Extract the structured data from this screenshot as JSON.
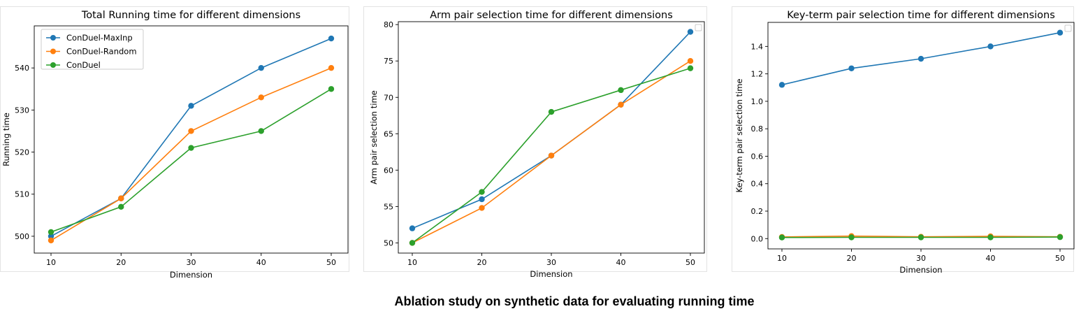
{
  "caption": "Ablation study on synthetic data for evaluating running time",
  "colors": {
    "blue": "#1f77b4",
    "orange": "#ff7f0e",
    "green": "#2ca02c"
  },
  "chart_data": [
    {
      "type": "line",
      "title": "Total Running time for different dimensions",
      "xlabel": "Dimension",
      "ylabel": "Running time",
      "x": [
        10,
        20,
        30,
        40,
        50
      ],
      "xticks": [
        "10",
        "20",
        "30",
        "40",
        "50"
      ],
      "yticks": [
        "500",
        "510",
        "520",
        "530",
        "540"
      ],
      "ylim": [
        496,
        550
      ],
      "legend": "top-left",
      "series": [
        {
          "name": "ConDuel-MaxInp",
          "color": "#1f77b4",
          "values": [
            500,
            509,
            531,
            540,
            547
          ]
        },
        {
          "name": "ConDuel-Random",
          "color": "#ff7f0e",
          "values": [
            499,
            509,
            525,
            533,
            540
          ]
        },
        {
          "name": "ConDuel",
          "color": "#2ca02c",
          "values": [
            501,
            507,
            521,
            525,
            535
          ]
        }
      ]
    },
    {
      "type": "line",
      "title": "Arm pair selection time for different dimensions",
      "xlabel": "Dimension",
      "ylabel": "Arm pair selection time",
      "x": [
        10,
        20,
        30,
        40,
        50
      ],
      "xticks": [
        "10",
        "20",
        "30",
        "40",
        "50"
      ],
      "yticks": [
        "50",
        "55",
        "60",
        "65",
        "70",
        "75",
        "80"
      ],
      "ylim": [
        48.6,
        80.4
      ],
      "legend": "top-right (empty)",
      "series": [
        {
          "color": "#1f77b4",
          "values": [
            52,
            56,
            62,
            69,
            79
          ]
        },
        {
          "color": "#ff7f0e",
          "values": [
            50,
            54.8,
            62,
            69,
            75
          ]
        },
        {
          "color": "#2ca02c",
          "values": [
            50,
            57,
            68,
            71,
            74
          ]
        }
      ]
    },
    {
      "type": "line",
      "title": "Key-term pair selection time for different dimensions",
      "xlabel": "Dimension",
      "ylabel": "Key-term pair selection time",
      "x": [
        10,
        20,
        30,
        40,
        50
      ],
      "xticks": [
        "10",
        "20",
        "30",
        "40",
        "50"
      ],
      "yticks": [
        "0.0",
        "0.2",
        "0.4",
        "0.6",
        "0.8",
        "1.0",
        "1.2",
        "1.4"
      ],
      "ylim": [
        -0.075,
        1.575
      ],
      "legend": "top-right (empty)",
      "series": [
        {
          "color": "#1f77b4",
          "values": [
            1.12,
            1.24,
            1.31,
            1.4,
            1.5
          ]
        },
        {
          "color": "#ff7f0e",
          "values": [
            0.012,
            0.018,
            0.013,
            0.016,
            0.013
          ]
        },
        {
          "color": "#2ca02c",
          "values": [
            0.008,
            0.009,
            0.009,
            0.009,
            0.011
          ]
        }
      ]
    }
  ]
}
